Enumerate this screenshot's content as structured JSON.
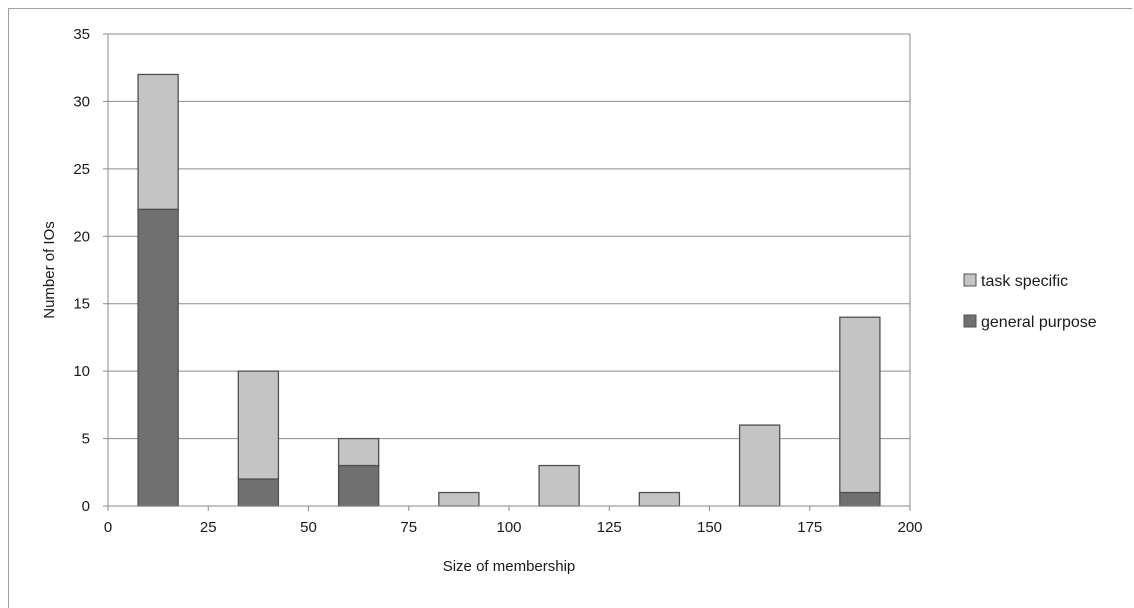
{
  "chart_data": {
    "type": "bar",
    "stacked": true,
    "xlabel": "Size of membership",
    "ylabel": "Number of IOs",
    "xlim": [
      0,
      200
    ],
    "ylim": [
      0,
      35
    ],
    "xticks": [
      0,
      25,
      50,
      75,
      100,
      125,
      150,
      175,
      200
    ],
    "yticks": [
      0,
      5,
      10,
      15,
      20,
      25,
      30,
      35
    ],
    "bin_width": 10,
    "x": [
      12.5,
      37.5,
      62.5,
      87.5,
      112.5,
      137.5,
      162.5,
      187.5
    ],
    "series": [
      {
        "name": "general purpose",
        "color": "#707070",
        "values": [
          22,
          2,
          3,
          0,
          0,
          0,
          0,
          1
        ]
      },
      {
        "name": "task specific",
        "color": "#c4c4c4",
        "values": [
          10,
          8,
          2,
          1,
          3,
          1,
          6,
          13
        ]
      }
    ],
    "legend_order": [
      "task specific",
      "general purpose"
    ],
    "legend_position": "right",
    "grid": "horizontal"
  }
}
